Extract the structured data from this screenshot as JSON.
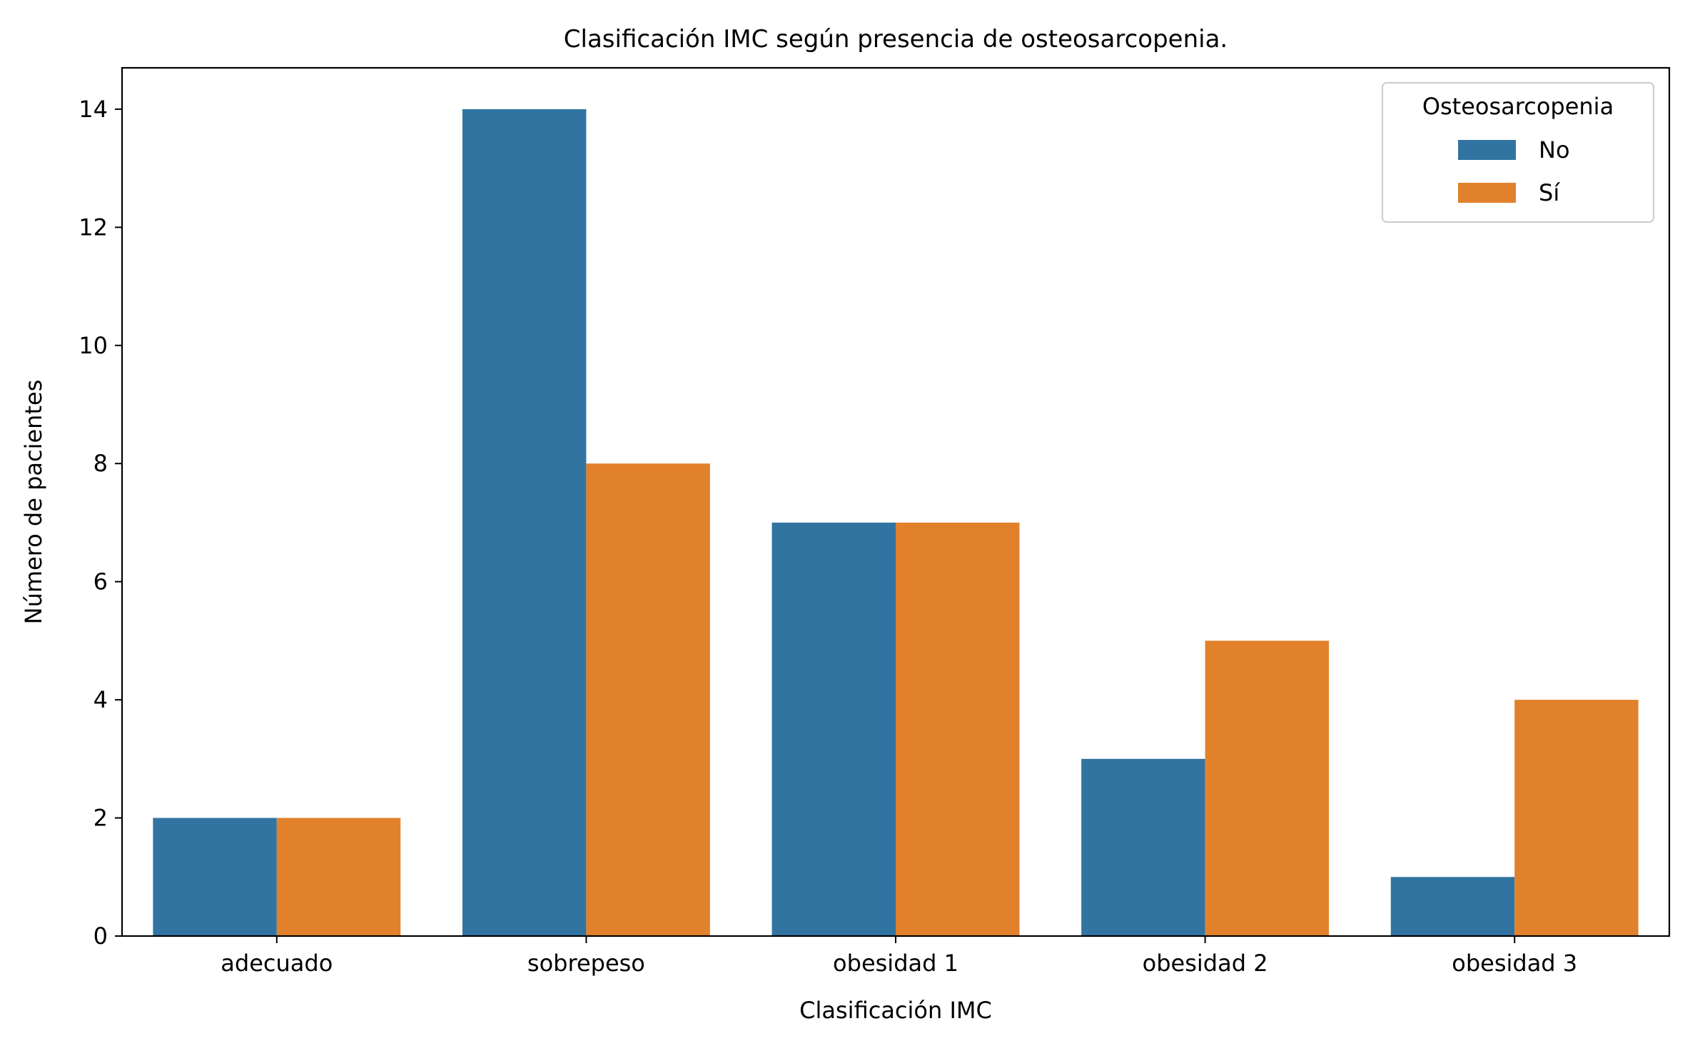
{
  "chart_data": {
    "type": "bar",
    "title": "Clasificación IMC según presencia de osteosarcopenia.",
    "xlabel": "Clasificación IMC",
    "ylabel": "Número de pacientes",
    "categories": [
      "adecuado",
      "sobrepeso",
      "obesidad 1",
      "obesidad 2",
      "obesidad 3"
    ],
    "series": [
      {
        "name": "No",
        "color": "#3274a1",
        "values": [
          2,
          14,
          7,
          3,
          1
        ]
      },
      {
        "name": "Sí",
        "color": "#e1812c",
        "values": [
          2,
          8,
          7,
          5,
          4
        ]
      }
    ],
    "ylim": [
      0,
      14.7
    ],
    "yticks": [
      0,
      2,
      4,
      6,
      8,
      10,
      12,
      14
    ],
    "grid": false,
    "legend": {
      "title": "Osteosarcopenia",
      "placement": "top-right"
    }
  }
}
